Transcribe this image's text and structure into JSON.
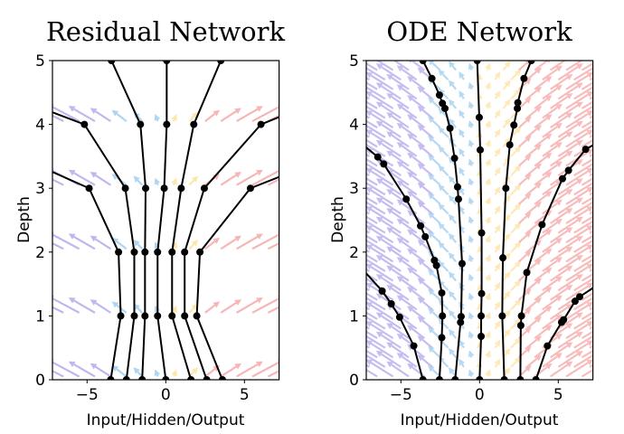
{
  "chart_data": [
    {
      "type": "line",
      "title": "Residual Network",
      "xlabel": "Input/Hidden/Output",
      "ylabel": "Depth",
      "xlim": [
        -7.2,
        7.2
      ],
      "ylim": [
        0,
        5
      ],
      "xticks": [
        -5,
        0,
        5
      ],
      "xtick_labels": [
        "−5",
        "0",
        "5"
      ],
      "yticks": [
        0,
        1,
        2,
        3,
        4,
        5
      ],
      "ytick_labels": [
        "0",
        "1",
        "2",
        "3",
        "4",
        "5"
      ],
      "grid": false,
      "markers": true,
      "vector_field": {
        "rows": [
          0.05,
          1.05,
          2.05,
          3.05,
          4.05
        ],
        "x_step": 1.0
      },
      "series": [
        {
          "x": [
            -3.5,
            -2.86,
            -3.0,
            -4.87,
            -14.0
          ],
          "y": [
            0,
            1,
            2,
            3,
            4
          ]
        },
        {
          "x": [
            -2.5,
            -2.0,
            -2.0,
            -2.57,
            -5.17,
            -15.9
          ],
          "y": [
            0,
            1,
            2,
            3,
            4,
            5
          ]
        },
        {
          "x": [
            -1.5,
            -1.32,
            -1.32,
            -1.28,
            -1.61,
            -3.45
          ],
          "y": [
            0,
            1,
            2,
            3,
            4,
            5
          ]
        },
        {
          "x": [
            0.0,
            -0.52,
            -0.52,
            -0.1,
            0.06,
            0.06
          ],
          "y": [
            0,
            1,
            2,
            3,
            4,
            5
          ]
        },
        {
          "x": [
            1.6,
            0.4,
            0.4,
            0.98,
            1.78,
            3.5
          ],
          "y": [
            0,
            1,
            2,
            3,
            4,
            5
          ]
        },
        {
          "x": [
            2.6,
            1.2,
            1.2,
            2.45,
            6.05,
            16.0
          ],
          "y": [
            0,
            1,
            2,
            3,
            4,
            5
          ]
        },
        {
          "x": [
            3.6,
            1.97,
            2.17,
            5.38,
            15.7
          ],
          "y": [
            0,
            1,
            2,
            3,
            4
          ]
        }
      ]
    },
    {
      "type": "line",
      "title": "ODE Network",
      "xlabel": "Input/Hidden/Output",
      "ylabel": "Depth",
      "xlim": [
        -7.2,
        7.2
      ],
      "ylim": [
        0,
        5
      ],
      "xticks": [
        -5,
        0,
        5
      ],
      "xtick_labels": [
        "−5",
        "0",
        "5"
      ],
      "yticks": [
        0,
        1,
        2,
        3,
        4,
        5
      ],
      "ytick_labels": [
        "0",
        "1",
        "2",
        "3",
        "4",
        "5"
      ],
      "grid": false,
      "markers": true,
      "vector_field": {
        "y_step": 0.15,
        "x_step": 1.0
      },
      "series": [
        {
          "x": [
            -3.6,
            -4.18,
            -5.08,
            -5.61,
            -6.19,
            -7.4
          ],
          "y": [
            0,
            0.53,
            0.98,
            1.19,
            1.39,
            1.72
          ]
        },
        {
          "x": [
            -2.55,
            -2.4,
            -2.36,
            -2.4,
            -2.74,
            -2.87,
            -3.45,
            -3.75,
            -4.66,
            -6.09,
            -6.47,
            -7.4
          ],
          "y": [
            0,
            0.66,
            1.0,
            1.36,
            1.79,
            1.87,
            2.24,
            2.41,
            2.83,
            3.38,
            3.49,
            3.68
          ]
        },
        {
          "x": [
            -1.55,
            -1.21,
            -1.17,
            -1.11,
            -1.34,
            -1.4,
            -1.59,
            -1.88,
            -2.2,
            -2.36,
            -2.55,
            -3.03,
            -3.6
          ],
          "y": [
            0,
            0.9,
            0.99,
            1.82,
            2.83,
            3.02,
            3.47,
            3.94,
            4.25,
            4.33,
            4.46,
            4.72,
            5.0
          ]
        },
        {
          "x": [
            0.0,
            0.1,
            0.1,
            0.13,
            0.13,
            0.04,
            -0.02,
            -0.15
          ],
          "y": [
            0,
            0.68,
            1.0,
            1.35,
            2.3,
            3.6,
            4.11,
            5.0
          ]
        },
        {
          "x": [
            1.57,
            1.44,
            1.48,
            1.67,
            1.92,
            2.18,
            2.4,
            2.43,
            2.82,
            3.29
          ],
          "y": [
            0,
            1.0,
            1.91,
            3.0,
            3.68,
            3.99,
            4.25,
            4.34,
            4.72,
            5.0
          ]
        },
        {
          "x": [
            2.59,
            2.62,
            2.66,
            3.0,
            3.97,
            5.27,
            5.65,
            6.74,
            7.4
          ],
          "y": [
            0,
            0.85,
            1.0,
            1.68,
            2.43,
            3.15,
            3.28,
            3.61,
            3.7
          ]
        },
        {
          "x": [
            3.58,
            4.31,
            5.21,
            5.34,
            6.07,
            6.36,
            7.4
          ],
          "y": [
            0,
            0.53,
            0.9,
            0.94,
            1.23,
            1.3,
            1.47
          ]
        }
      ]
    }
  ],
  "colors": {
    "trajectory": "#000000",
    "field_left": "#8c7ee0",
    "field_center_left": "#6fb3e6",
    "field_center_right": "#ffd36b",
    "field_right": "#ef7b7b"
  }
}
